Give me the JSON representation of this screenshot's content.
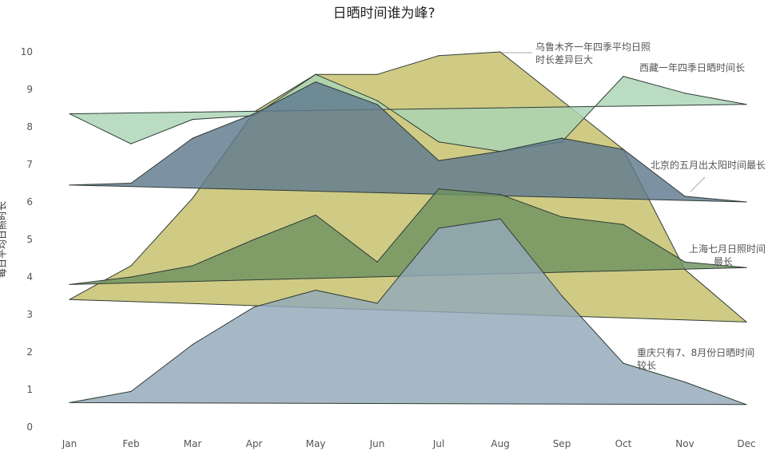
{
  "chart_data": {
    "type": "area",
    "title": "日晒时间谁为峰?",
    "xlabel": "",
    "ylabel": "每日平均日照时长",
    "categories": [
      "Jan",
      "Feb",
      "Mar",
      "Apr",
      "May",
      "Jun",
      "Jul",
      "Aug",
      "Sep",
      "Oct",
      "Nov",
      "Dec"
    ],
    "ylim": [
      0,
      10.5
    ],
    "yticks": [
      0,
      1,
      2,
      3,
      4,
      5,
      6,
      7,
      8,
      9,
      10
    ],
    "grid": false,
    "colors": {
      "wulumuqi": "#c5c06a",
      "xizang": "#a9d4b4",
      "beijing": "#5f7a8f",
      "shanghai": "#6e9262",
      "chongqing": "#93a8ba"
    },
    "series": [
      {
        "key": "wulumuqi",
        "values": [
          3.4,
          4.3,
          6.1,
          8.4,
          9.4,
          9.4,
          9.9,
          10.0,
          8.7,
          7.4,
          4.2,
          2.8
        ]
      },
      {
        "key": "xizang",
        "values": [
          8.35,
          7.55,
          8.2,
          8.3,
          9.4,
          8.7,
          7.6,
          7.35,
          7.6,
          9.35,
          8.9,
          8.6
        ]
      },
      {
        "key": "beijing",
        "values": [
          6.45,
          6.5,
          7.7,
          8.35,
          9.2,
          8.6,
          7.1,
          7.35,
          7.7,
          7.4,
          6.15,
          6.0
        ]
      },
      {
        "key": "shanghai",
        "values": [
          3.8,
          4.0,
          4.3,
          5.0,
          5.65,
          4.4,
          6.35,
          6.2,
          5.6,
          5.4,
          4.4,
          4.25
        ]
      },
      {
        "key": "chongqing",
        "values": [
          0.65,
          0.95,
          2.2,
          3.2,
          3.65,
          3.3,
          5.3,
          5.55,
          3.5,
          1.7,
          1.2,
          0.6
        ]
      }
    ],
    "annotations": [
      {
        "key": "wulumuqi",
        "lines": [
          "乌鲁木齐一年四季平均日照",
          "时长差异巨大"
        ]
      },
      {
        "key": "xizang",
        "lines": [
          "西藏一年四季日晒时间长"
        ]
      },
      {
        "key": "beijing",
        "lines": [
          "北京的五月出太阳时间最长"
        ]
      },
      {
        "key": "shanghai",
        "lines": [
          "上海七月日照时间",
          "最长"
        ]
      },
      {
        "key": "chongqing",
        "lines": [
          "重庆只有7、8月份日晒时间",
          "较长"
        ]
      }
    ]
  }
}
